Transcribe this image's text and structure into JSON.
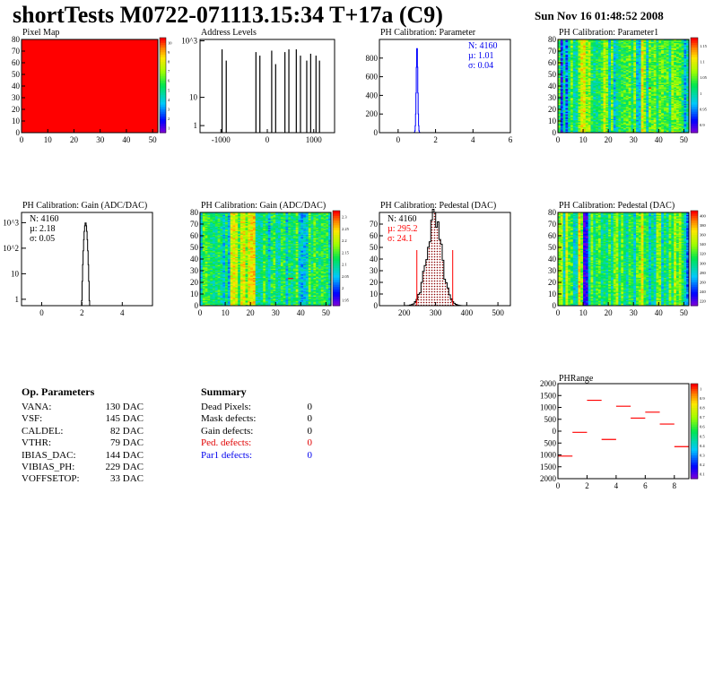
{
  "header": {
    "title": "shortTests M0722-071113.15:34 T+17a (C9)",
    "date": "Sun Nov 16 01:48:52 2008"
  },
  "colors": {
    "red": "#ff0000",
    "blue": "#0000ee",
    "hist_blue": "#0000ff",
    "hatch": "#8b0000"
  },
  "chart_data": [
    {
      "id": "pixelmap",
      "type": "heatmap",
      "title": "Pixel Map",
      "xlim": [
        0,
        52
      ],
      "ylim": [
        0,
        80
      ],
      "xticks": [
        "0",
        "10",
        "20",
        "30",
        "40",
        "50"
      ],
      "yticks": [
        "0",
        "10",
        "20",
        "30",
        "40",
        "50",
        "60",
        "70",
        "80"
      ],
      "fill": "uniform-max",
      "palette_max": 10,
      "zticks": [
        "1",
        "2",
        "3",
        "4",
        "5",
        "6",
        "7",
        "8",
        "9",
        "10"
      ]
    },
    {
      "id": "addr",
      "type": "bar",
      "title": "Address Levels",
      "log_y": true,
      "xlim": [
        -1450,
        1450
      ],
      "xticks": [
        "-1000",
        "0",
        "1000"
      ],
      "yticks": [
        "1",
        "10",
        "10^3"
      ],
      "peaks_x": [
        -975,
        -885,
        -245,
        -160,
        95,
        180,
        380,
        465,
        625,
        715,
        850,
        935,
        1050,
        1125
      ],
      "peaks_y": [
        500,
        200,
        400,
        300,
        450,
        150,
        400,
        500,
        500,
        300,
        200,
        350,
        300,
        200
      ]
    },
    {
      "id": "phpar",
      "type": "histogram",
      "title": "PH Calibration: Parameter",
      "xlim": [
        -1,
        6
      ],
      "ylim": [
        0,
        1000
      ],
      "xticks": [
        "0",
        "2",
        "4",
        "6"
      ],
      "yticks": [
        "0",
        "200",
        "400",
        "600",
        "800"
      ],
      "stats": {
        "N": "N: 4160",
        "mean": "µ: 1.01",
        "sigma": "σ: 0.04"
      },
      "mean": 1.01,
      "sigma": 0.04,
      "peak": 930
    },
    {
      "id": "phpar1",
      "type": "heatmap",
      "title": "PH Calibration: Parameter1",
      "xlim": [
        0,
        52
      ],
      "ylim": [
        0,
        80
      ],
      "xticks": [
        "0",
        "10",
        "20",
        "30",
        "40",
        "50"
      ],
      "yticks": [
        "0",
        "10",
        "20",
        "30",
        "40",
        "50",
        "60",
        "70",
        "80"
      ],
      "zticks": [
        "0.9",
        "0.95",
        "1",
        "1.05",
        "1.1",
        "1.15"
      ]
    },
    {
      "id": "gain1d",
      "type": "histogram",
      "title": "PH Calibration: Gain (ADC/DAC)",
      "log_y": true,
      "xlim": [
        -1,
        5.5
      ],
      "xticks": [
        "0",
        "2",
        "4"
      ],
      "yticks": [
        "1",
        "10",
        "10^2",
        "10^3"
      ],
      "stats": {
        "N": "N: 4160",
        "mean": "µ: 2.18",
        "sigma": "σ: 0.05"
      },
      "mean": 2.18,
      "sigma": 0.05,
      "peak": 1000
    },
    {
      "id": "gain2d",
      "type": "heatmap",
      "title": "PH Calibration: Gain (ADC/DAC)",
      "xlim": [
        0,
        52
      ],
      "ylim": [
        0,
        80
      ],
      "xticks": [
        "0",
        "10",
        "20",
        "30",
        "40",
        "50"
      ],
      "yticks": [
        "0",
        "10",
        "20",
        "30",
        "40",
        "50",
        "60",
        "70",
        "80"
      ],
      "zticks": [
        "1.95",
        "2",
        "2.05",
        "2.1",
        "2.15",
        "2.2",
        "2.25",
        "2.3"
      ]
    },
    {
      "id": "ped1d",
      "type": "histogram",
      "title": "PH Calibration: Pedestal (DAC)",
      "xlim": [
        120,
        540
      ],
      "ylim": [
        0,
        80
      ],
      "xticks": [
        "200",
        "300",
        "400",
        "500"
      ],
      "yticks": [
        "0",
        "10",
        "20",
        "30",
        "40",
        "50",
        "60",
        "70"
      ],
      "stats": {
        "N": "N: 4160",
        "mean": "µ: 295.2",
        "sigma": "σ: 24.1"
      },
      "mean": 295.2,
      "sigma": 24.1,
      "peak": 72,
      "cut_lines": [
        240,
        355
      ]
    },
    {
      "id": "ped2d",
      "type": "heatmap",
      "title": "PH Calibration: Pedestal (DAC)",
      "xlim": [
        0,
        52
      ],
      "ylim": [
        0,
        80
      ],
      "xticks": [
        "0",
        "10",
        "20",
        "30",
        "40",
        "50"
      ],
      "yticks": [
        "0",
        "10",
        "20",
        "30",
        "40",
        "50",
        "60",
        "70",
        "80"
      ],
      "zticks": [
        "220",
        "240",
        "260",
        "280",
        "300",
        "320",
        "340",
        "360",
        "380",
        "400"
      ]
    },
    {
      "id": "phrange",
      "type": "scatter",
      "title": "PHRange",
      "xlim": [
        0,
        9
      ],
      "ylim": [
        -2000,
        2000
      ],
      "xticks": [
        "0",
        "2",
        "4",
        "6",
        "8"
      ],
      "yticks": [
        "2000",
        "1500",
        "1000",
        "500",
        "0",
        "500",
        "1000",
        "1500",
        "2000"
      ],
      "x": [
        0.5,
        1.5,
        2.5,
        3.5,
        4.5,
        5.5,
        6.5,
        7.5,
        8.5
      ],
      "y": [
        -1050,
        -50,
        1300,
        -350,
        1050,
        550,
        800,
        300,
        -650
      ],
      "zticks": [
        "0.1",
        "0.2",
        "0.3",
        "0.4",
        "0.5",
        "0.6",
        "0.7",
        "0.8",
        "0.9",
        "1"
      ]
    }
  ],
  "op_params": {
    "title": "Op. Parameters",
    "items": [
      {
        "k": "VANA:",
        "v": "130 DAC"
      },
      {
        "k": "VSF:",
        "v": "145 DAC"
      },
      {
        "k": "CALDEL:",
        "v": "82 DAC"
      },
      {
        "k": "VTHR:",
        "v": "79 DAC"
      },
      {
        "k": "IBIAS_DAC:",
        "v": "144 DAC"
      },
      {
        "k": "VIBIAS_PH:",
        "v": "229 DAC"
      },
      {
        "k": "VOFFSETOP:",
        "v": "33 DAC"
      }
    ]
  },
  "summary": {
    "title": "Summary",
    "items": [
      {
        "k": "Dead Pixels:",
        "v": "0",
        "c": ""
      },
      {
        "k": "Mask defects:",
        "v": "0",
        "c": ""
      },
      {
        "k": "Gain defects:",
        "v": "0",
        "c": ""
      },
      {
        "k": "Ped. defects:",
        "v": "0",
        "c": "red"
      },
      {
        "k": "Par1 defects:",
        "v": "0",
        "c": "blue"
      }
    ]
  }
}
